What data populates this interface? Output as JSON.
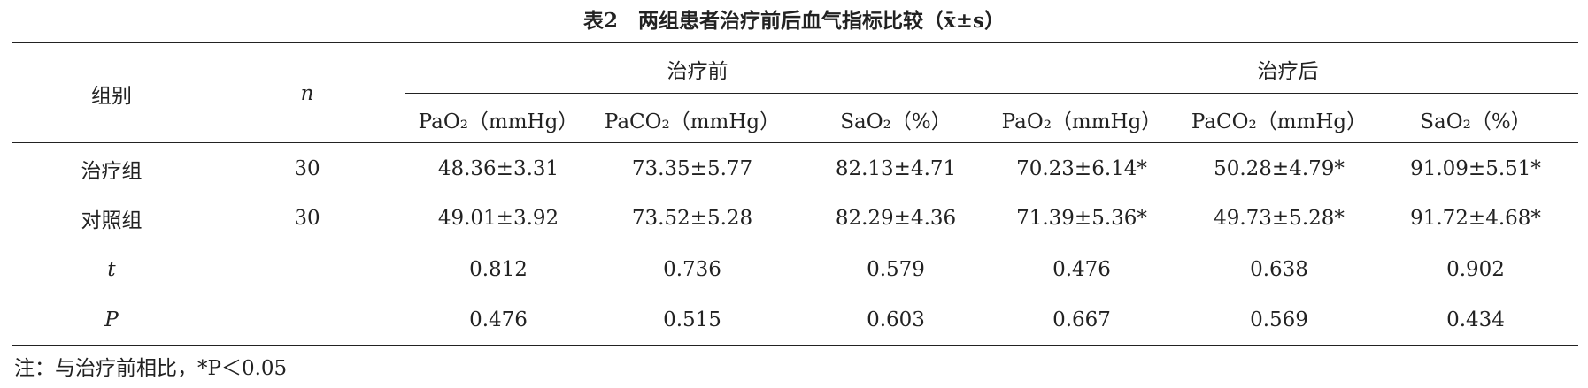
{
  "title": "表2　两组患者治疗前后血气指标比较（x̄±s）",
  "table": {
    "header": {
      "group": "组别",
      "n": "n",
      "before": "治疗前",
      "after": "治疗后",
      "columns": [
        "PaO₂（mmHg）",
        "PaCO₂（mmHg）",
        "SaO₂（%）",
        "PaO₂（mmHg）",
        "PaCO₂（mmHg）",
        "SaO₂（%）"
      ]
    },
    "rows": [
      [
        "治疗组",
        "30",
        "48.36±3.31",
        "73.35±5.77",
        "82.13±4.71",
        "70.23±6.14*",
        "50.28±4.79*",
        "91.09±5.51*"
      ],
      [
        "对照组",
        "30",
        "49.01±3.92",
        "73.52±5.28",
        "82.29±4.36",
        "71.39±5.36*",
        "49.73±5.28*",
        "91.72±4.68*"
      ],
      [
        "t",
        "0.812",
        "0.736",
        "0.579",
        "0.476",
        "0.638",
        "0.902"
      ],
      [
        "P",
        "0.476",
        "0.515",
        "0.603",
        "0.667",
        "0.569",
        "0.434"
      ]
    ]
  },
  "note": "注：与治疗前相比，*P＜0.05"
}
